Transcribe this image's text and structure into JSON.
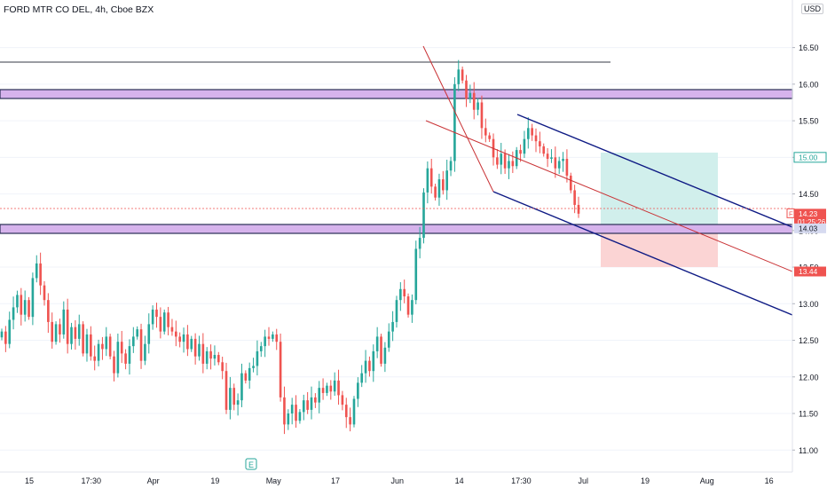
{
  "header": {
    "title": "FORD MTR CO DEL, 4h, Cboe BZX",
    "currency": "USD"
  },
  "colors": {
    "up": "#26a69a",
    "down": "#ef5350",
    "zone_fill": "#d6b3ec",
    "zone_border": "#2a2e55",
    "channel": "#0e1a84",
    "trend": "#c93235",
    "target_fill": "#d1efec",
    "stop_fill": "#fbd4d4",
    "last_price": "#ef5350",
    "target_label": "#26a69a"
  },
  "markers": {
    "earnings_label": "E"
  },
  "chart_data": {
    "type": "candlestick",
    "title": "FORD MTR CO DEL, 4h, Cboe BZX",
    "ylim": [
      10.7,
      17.15
    ],
    "y_ticks": [
      "16.50",
      "16.00",
      "15.50",
      "15.00",
      "14.50",
      "14.00",
      "13.50",
      "13.00",
      "12.50",
      "12.00",
      "11.50",
      "11.00"
    ],
    "x_ticks": [
      "15",
      "17:30",
      "Apr",
      "19",
      "May",
      "17",
      "Jun",
      "14",
      "17:30",
      "Jul",
      "19",
      "Aug",
      "16"
    ],
    "price_labels": [
      {
        "text": "15.00",
        "value": 15.0,
        "kind": "target"
      },
      {
        "text": "14.23",
        "value": 14.23,
        "kind": "last",
        "symbol": "F",
        "countdown": "01:25:26"
      },
      {
        "text": "14.03",
        "value": 14.03,
        "kind": "zone"
      },
      {
        "text": "13.44",
        "value": 13.44,
        "kind": "stop"
      }
    ],
    "last_price": 14.23,
    "horizontal_zones": [
      [
        15.72,
        15.88
      ],
      [
        13.86,
        14.03
      ]
    ],
    "horizontal_line": 16.25,
    "position": {
      "entry": 14.03,
      "target": 15.0,
      "stop": 13.44
    },
    "closes": [
      12.62,
      12.45,
      12.78,
      12.95,
      13.12,
      12.85,
      13.05,
      12.82,
      13.35,
      13.55,
      13.25,
      13.05,
      12.75,
      12.48,
      12.72,
      12.58,
      12.92,
      12.45,
      12.68,
      12.52,
      12.72,
      12.32,
      12.58,
      12.28,
      12.22,
      12.45,
      12.38,
      12.55,
      12.28,
      12.05,
      12.48,
      12.32,
      12.18,
      12.42,
      12.55,
      12.65,
      12.22,
      12.45,
      12.72,
      12.92,
      12.82,
      12.62,
      12.88,
      12.68,
      12.62,
      12.55,
      12.48,
      12.58,
      12.38,
      12.52,
      12.28,
      12.45,
      12.18,
      12.35,
      12.25,
      12.3,
      12.2,
      12.08,
      11.55,
      11.85,
      11.62,
      11.68,
      12.05,
      11.95,
      12.12,
      12.15,
      12.35,
      12.42,
      12.55,
      12.52,
      12.58,
      12.48,
      11.72,
      11.35,
      11.5,
      11.62,
      11.4,
      11.52,
      11.68,
      11.55,
      11.72,
      11.65,
      11.85,
      11.78,
      11.88,
      11.8,
      11.95,
      11.75,
      11.62,
      11.45,
      11.35,
      11.7,
      11.92,
      12.05,
      12.22,
      12.08,
      12.35,
      12.55,
      12.18,
      12.4,
      12.62,
      12.75,
      13.05,
      13.2,
      13.1,
      12.85,
      13.05,
      13.75,
      13.9,
      14.52,
      14.85,
      14.6,
      14.45,
      14.7,
      14.55,
      14.82,
      14.95,
      16.0,
      16.2,
      16.05,
      15.8,
      15.88,
      15.65,
      15.75,
      15.4,
      15.3,
      15.25,
      15.0,
      14.9,
      15.05,
      14.85,
      14.95,
      14.88,
      15.1,
      15.05,
      15.25,
      15.4,
      15.3,
      15.22,
      15.15,
      15.05,
      14.98,
      15.0,
      14.85,
      14.95,
      14.98,
      14.75,
      14.55,
      14.35,
      14.23
    ]
  }
}
